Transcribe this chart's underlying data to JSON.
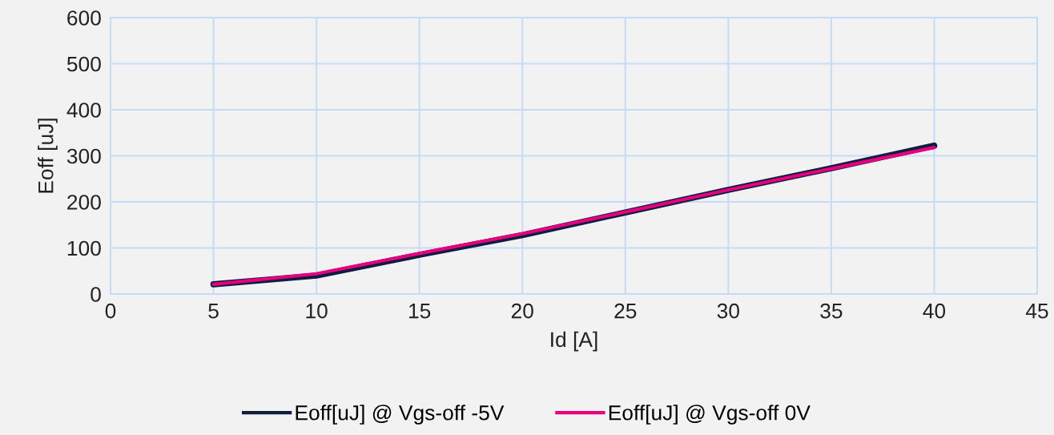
{
  "chart_data": {
    "type": "line",
    "xlabel": "Id [A]",
    "ylabel": "Eoff [uJ]",
    "x": [
      5,
      10,
      15,
      20,
      25,
      30,
      35,
      40
    ],
    "series": [
      {
        "name": "Eoff[uJ] @ Vgs-off -5V",
        "color": "#0d1e3f",
        "values": [
          21,
          40,
          85,
          128,
          177,
          226,
          273,
          322
        ]
      },
      {
        "name": "Eoff[uJ] @ Vgs-off 0V",
        "color": "#e6007e",
        "values": [
          21,
          44,
          88,
          131,
          178,
          226,
          272,
          318
        ]
      }
    ],
    "xlim": [
      0,
      45
    ],
    "xticks": [
      0,
      5,
      10,
      15,
      20,
      25,
      30,
      35,
      40,
      45
    ],
    "ylim": [
      0,
      600
    ],
    "yticks": [
      0,
      100,
      200,
      300,
      400,
      500,
      600
    ],
    "grid": true,
    "legend": "bottom",
    "marker": "none",
    "line_style": "solid"
  }
}
